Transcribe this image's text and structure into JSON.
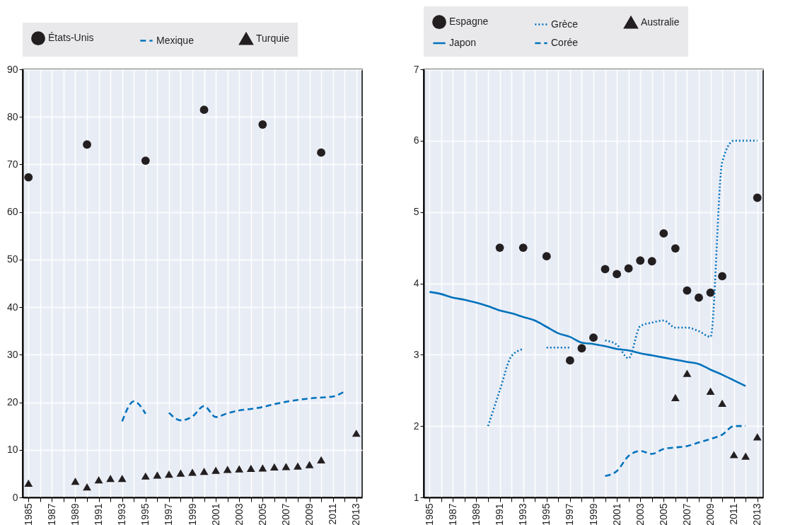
{
  "chart_data": [
    {
      "type": "scatter",
      "legend": "top",
      "grid": true,
      "xlim": [
        1984.5,
        2013.5
      ],
      "ylim": [
        0,
        90
      ],
      "yticks": [
        0,
        10,
        20,
        30,
        40,
        50,
        60,
        70,
        80,
        90
      ],
      "xticks": [
        1985,
        {
          "value": 1986,
          "label": null
        },
        1987,
        {
          "value": 1988,
          "label": null
        },
        1989,
        {
          "value": 1990,
          "label": null
        },
        1991,
        {
          "value": 1992,
          "label": null
        },
        1993,
        {
          "value": 1994,
          "label": null
        },
        1995,
        {
          "value": 1996,
          "label": null
        },
        1997,
        {
          "value": 1998,
          "label": null
        },
        1999,
        {
          "value": 2000,
          "label": null
        },
        2001,
        {
          "value": 2002,
          "label": null
        },
        2003,
        {
          "value": 2004,
          "label": null
        },
        2005,
        {
          "value": 2006,
          "label": null
        },
        2007,
        {
          "value": 2008,
          "label": null
        },
        2009,
        {
          "value": 2010,
          "label": null
        },
        2011,
        {
          "value": 2012,
          "label": null
        },
        2013
      ],
      "series": [
        {
          "name": "États-Unis",
          "marker": "circle",
          "color": "#231f20",
          "x": [
            1985,
            1990,
            1995,
            2000,
            2005,
            2010
          ],
          "values": [
            67.3,
            74.2,
            70.8,
            81.5,
            78.4,
            72.5
          ]
        },
        {
          "name": "Mexique",
          "type": "line",
          "line_style": "dashed",
          "color": "#0072bc",
          "x": [
            1993,
            1994,
            1995,
            1996,
            1997,
            1998,
            1999,
            2000,
            2001,
            2002,
            2003,
            2004,
            2005,
            2006,
            2007,
            2008,
            2009,
            2010,
            2011,
            2012
          ],
          "values": [
            16.0,
            20.2,
            17.6,
            null,
            17.8,
            16.2,
            17.0,
            19.2,
            16.9,
            17.7,
            18.3,
            18.6,
            19.0,
            19.6,
            20.1,
            20.5,
            20.8,
            21.0,
            21.2,
            22.3
          ]
        },
        {
          "name": "Turquie",
          "marker": "triangle",
          "color": "#231f20",
          "x": [
            1985,
            1989,
            1990,
            1991,
            1992,
            1993,
            1995,
            1996,
            1997,
            1998,
            1999,
            2000,
            2001,
            2002,
            2003,
            2004,
            2005,
            2006,
            2007,
            2008,
            2009,
            2010,
            2013
          ],
          "values": [
            3.0,
            3.4,
            2.2,
            3.7,
            4.0,
            4.0,
            4.5,
            4.7,
            4.9,
            5.1,
            5.3,
            5.5,
            5.7,
            5.9,
            6.0,
            6.1,
            6.2,
            6.4,
            6.5,
            6.6,
            6.9,
            7.9,
            13.5
          ]
        }
      ]
    },
    {
      "type": "scatter",
      "legend": "top",
      "grid": true,
      "xlim": [
        1984.5,
        2013.5
      ],
      "ylim": [
        1,
        7
      ],
      "yticks": [
        1,
        2,
        3,
        4,
        5,
        6,
        7
      ],
      "xticks": [
        1985,
        {
          "value": 1986,
          "label": null
        },
        1987,
        {
          "value": 1988,
          "label": null
        },
        1989,
        {
          "value": 1990,
          "label": null
        },
        1991,
        {
          "value": 1992,
          "label": null
        },
        1993,
        {
          "value": 1994,
          "label": null
        },
        1995,
        {
          "value": 1996,
          "label": null
        },
        1997,
        {
          "value": 1998,
          "label": null
        },
        1999,
        {
          "value": 2000,
          "label": null
        },
        2001,
        {
          "value": 2002,
          "label": null
        },
        2003,
        {
          "value": 2004,
          "label": null
        },
        2005,
        {
          "value": 2006,
          "label": null
        },
        2007,
        {
          "value": 2008,
          "label": null
        },
        2009,
        {
          "value": 2010,
          "label": null
        },
        2011,
        {
          "value": 2012,
          "label": null
        },
        2013
      ],
      "series": [
        {
          "name": "Espagne",
          "marker": "circle",
          "color": "#231f20",
          "x": [
            1991,
            1993,
            1995,
            1997,
            1998,
            1999,
            2000,
            2001,
            2002,
            2003,
            2004,
            2005,
            2006,
            2007,
            2008,
            2009,
            2010,
            2013
          ],
          "values": [
            4.5,
            4.5,
            4.38,
            2.92,
            3.09,
            3.24,
            4.2,
            4.13,
            4.21,
            4.32,
            4.31,
            4.7,
            4.49,
            3.9,
            3.8,
            3.87,
            4.1,
            5.2
          ]
        },
        {
          "name": "Grèce",
          "type": "line",
          "line_style": "dotted",
          "color": "#0072bc",
          "x": [
            1990,
            1991,
            1992,
            1993,
            1994,
            1995,
            1996,
            1997,
            1998,
            1999,
            2000,
            2001,
            2002,
            2003,
            2004,
            2005,
            2006,
            2007,
            2008,
            2009,
            2010,
            2011,
            2012,
            2013
          ],
          "values": [
            2.0,
            2.5,
            2.98,
            3.08,
            null,
            3.1,
            3.1,
            3.1,
            null,
            null,
            3.2,
            3.14,
            2.95,
            3.4,
            3.45,
            3.48,
            3.38,
            3.38,
            3.33,
            3.25,
            5.7,
            6.0,
            6.0,
            6.0
          ]
        },
        {
          "name": "Australie",
          "marker": "triangle",
          "color": "#231f20",
          "x": [
            2006,
            2007,
            2009,
            2010,
            2011,
            2012,
            2013
          ],
          "values": [
            2.4,
            2.74,
            2.49,
            2.32,
            1.6,
            1.58,
            1.85
          ]
        },
        {
          "name": "Japon",
          "type": "line",
          "line_style": "solid",
          "color": "#0072bc",
          "x": [
            1985,
            1986,
            1987,
            1988,
            1989,
            1990,
            1991,
            1992,
            1993,
            1994,
            1995,
            1996,
            1997,
            1998,
            1999,
            2000,
            2001,
            2002,
            2003,
            2004,
            2005,
            2006,
            2007,
            2008,
            2009,
            2010,
            2011,
            2012
          ],
          "values": [
            3.88,
            3.85,
            3.8,
            3.77,
            3.73,
            3.68,
            3.62,
            3.58,
            3.53,
            3.48,
            3.39,
            3.3,
            3.25,
            3.17,
            3.15,
            3.12,
            3.08,
            3.06,
            3.02,
            2.99,
            2.96,
            2.93,
            2.9,
            2.87,
            2.79,
            2.72,
            2.64,
            2.56
          ]
        },
        {
          "name": "Corée",
          "type": "line",
          "line_style": "dashed",
          "color": "#0072bc",
          "x": [
            2000,
            2001,
            2002,
            2003,
            2004,
            2005,
            2006,
            2007,
            2008,
            2009,
            2010,
            2011,
            2012
          ],
          "values": [
            1.3,
            1.37,
            1.58,
            1.65,
            1.61,
            1.68,
            1.7,
            1.72,
            1.77,
            1.82,
            1.88,
            2.0,
            2.0
          ]
        }
      ]
    }
  ]
}
